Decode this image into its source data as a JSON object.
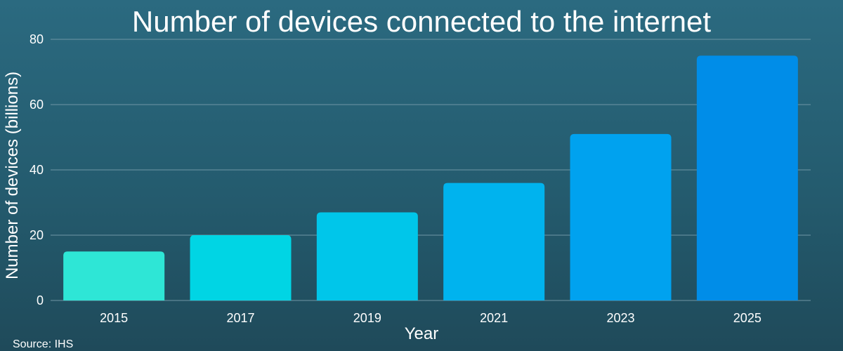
{
  "chart_data": {
    "type": "bar",
    "title": "Number of devices connected to the internet",
    "xlabel": "Year",
    "ylabel": "Number of devices (billions)",
    "categories": [
      "2015",
      "2017",
      "2019",
      "2021",
      "2023",
      "2025"
    ],
    "values": [
      15,
      20,
      27,
      36,
      51,
      75
    ],
    "ylim": [
      0,
      80
    ],
    "yticks": [
      0,
      20,
      40,
      60,
      80
    ],
    "grid": true,
    "bar_colors": [
      "#2ee6d6",
      "#00d5e4",
      "#00c6ea",
      "#00b3ee",
      "#00a2ef",
      "#008de8"
    ]
  },
  "source": "Source: IHS",
  "colors": {
    "background_top": "#2b6a80",
    "background_bottom": "#1f4a5a",
    "gridline": "#6f97a6",
    "text": "#ffffff"
  }
}
